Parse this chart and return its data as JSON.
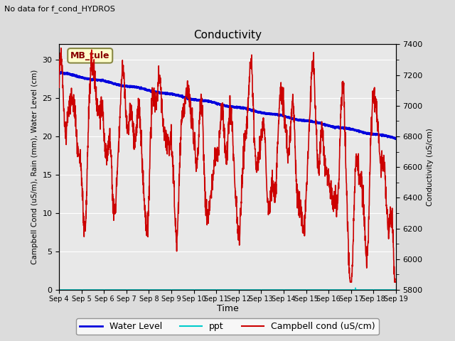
{
  "title": "Conductivity",
  "top_left_text": "No data for f_cond_HYDROS",
  "ylabel_left": "Campbell Cond (uS/m), Rain (mm), Water Level (cm)",
  "ylabel_right": "Conductivity (uS/cm)",
  "xlabel": "Time",
  "ylim_left": [
    0,
    32
  ],
  "ylim_right": [
    5800,
    7400
  ],
  "yticks_left": [
    0,
    5,
    10,
    15,
    20,
    25,
    30
  ],
  "yticks_right": [
    5800,
    6000,
    6200,
    6400,
    6600,
    6800,
    7000,
    7200,
    7400
  ],
  "xtick_labels": [
    "Sep 4",
    "Sep 5",
    "Sep 6",
    "Sep 7",
    "Sep 8",
    "Sep 9",
    "Sep 10",
    "Sep 11",
    "Sep 12",
    "Sep 13",
    "Sep 14",
    "Sep 15",
    "Sep 16",
    "Sep 17",
    "Sep 18",
    "Sep 19"
  ],
  "bg_color": "#dcdcdc",
  "plot_bg_color": "#e8e8e8",
  "annotation_box": {
    "text": "MB_tule",
    "facecolor": "#ffffcc",
    "edgecolor": "#888844",
    "textcolor": "#880000"
  },
  "water_level_color": "#0000dd",
  "ppt_color": "#00cccc",
  "campbell_cond_color": "#cc0000",
  "water_level_linewidth": 2.0,
  "campbell_cond_linewidth": 1.2,
  "ppt_linewidth": 1.2,
  "legend_entries": [
    "Water Level",
    "ppt",
    "Campbell cond (uS/cm)"
  ]
}
